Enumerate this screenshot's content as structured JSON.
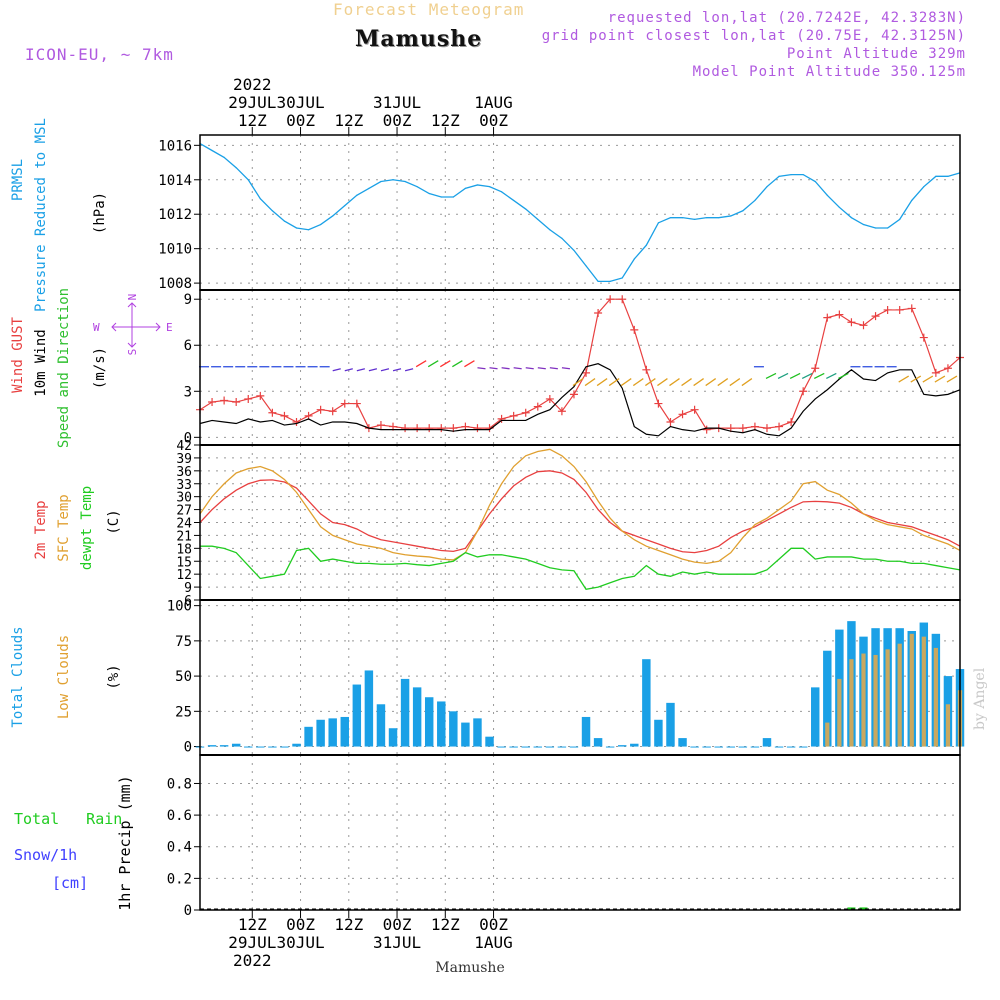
{
  "header": {
    "title": "Forecast Meteogram",
    "location": "Mamushe",
    "model": "ICON-EU, ~ 7km",
    "requested": "requested lon,lat (20.7242E, 42.3283N)",
    "grid_point": "grid point closest lon,lat (20.75E, 42.3125N)",
    "point_altitude": "Point Altitude 329m",
    "model_altitude": "Model Point Altitude 350.125m",
    "footer_location": "Mamushe",
    "watermark": "by Angel"
  },
  "colors": {
    "pressure": "#1aa0e6",
    "gust": "#e84040",
    "wind": "#000000",
    "wind_dir": "#30c030",
    "t2m": "#e84040",
    "sfc": "#e0a030",
    "dew": "#20cc20",
    "total_cloud": "#1aa0e6",
    "low_cloud": "#c8a860",
    "rain": "#20cc20",
    "snow": "#4040ff",
    "compass": "#b040e0"
  },
  "chart_data": [
    {
      "type": "line",
      "id": "pressure",
      "ylabel_parts": [
        "PRMSL",
        "Pressure Reduced to MSL",
        "(hPa)"
      ],
      "ylim": [
        1007.6,
        1016.6
      ],
      "yticks": [
        1008,
        1010,
        1012,
        1014,
        1016
      ],
      "x_hours": [
        0,
        3,
        6,
        9,
        12,
        15,
        18,
        21,
        24,
        27,
        30,
        33,
        36,
        39,
        42,
        45,
        48,
        51,
        54,
        57,
        60,
        63,
        66,
        69,
        72,
        75,
        78,
        81,
        84,
        87,
        90,
        93,
        96,
        99,
        102,
        105,
        108,
        111,
        114,
        117,
        120,
        123,
        126,
        129,
        132,
        135,
        138,
        141,
        144,
        147,
        150,
        153,
        156,
        159,
        162,
        165,
        168,
        171,
        174,
        177,
        180,
        183,
        186,
        189
      ],
      "series": [
        {
          "name": "PRMSL",
          "values": [
            1016.1,
            1015.7,
            1015.3,
            1014.7,
            1014.0,
            1012.9,
            1012.2,
            1011.6,
            1011.2,
            1011.1,
            1011.4,
            1011.9,
            1012.5,
            1013.1,
            1013.5,
            1013.9,
            1014.0,
            1013.9,
            1013.6,
            1013.2,
            1013.0,
            1013.0,
            1013.5,
            1013.7,
            1013.6,
            1013.3,
            1012.8,
            1012.3,
            1011.7,
            1011.1,
            1010.6,
            1009.9,
            1009.0,
            1008.1,
            1008.1,
            1008.3,
            1009.4,
            1010.2,
            1011.5,
            1011.8,
            1011.8,
            1011.7,
            1011.8,
            1011.8,
            1011.9,
            1012.2,
            1012.8,
            1013.6,
            1014.2,
            1014.3,
            1014.3,
            1013.9,
            1013.1,
            1012.4,
            1011.8,
            1011.4,
            1011.2,
            1011.2,
            1011.7,
            1012.8,
            1013.6,
            1014.2,
            1014.2,
            1014.4
          ]
        }
      ]
    },
    {
      "type": "line",
      "id": "wind",
      "ylabel_parts": [
        "Wind GUST",
        "10m Wind",
        "Speed and Direction",
        "(m/s)"
      ],
      "compass": {
        "n": "N",
        "s": "S",
        "w": "W",
        "e": "E"
      },
      "ylim": [
        -0.5,
        9.6
      ],
      "yticks": [
        0,
        3,
        6,
        9
      ],
      "x_hours": [
        0,
        3,
        6,
        9,
        12,
        15,
        18,
        21,
        24,
        27,
        30,
        33,
        36,
        39,
        42,
        45,
        48,
        51,
        54,
        57,
        60,
        63,
        66,
        69,
        72,
        75,
        78,
        81,
        84,
        87,
        90,
        93,
        96,
        99,
        102,
        105,
        108,
        111,
        114,
        117,
        120,
        123,
        126,
        129,
        132,
        135,
        138,
        141,
        144,
        147,
        150,
        153,
        156,
        159,
        162,
        165,
        168,
        171,
        174,
        177,
        180,
        183,
        186,
        189
      ],
      "series": [
        {
          "name": "Wind GUST",
          "values": [
            1.8,
            2.3,
            2.4,
            2.3,
            2.5,
            2.7,
            1.6,
            1.4,
            1.0,
            1.4,
            1.8,
            1.7,
            2.2,
            2.2,
            0.6,
            0.8,
            0.7,
            0.6,
            0.6,
            0.6,
            0.6,
            0.6,
            0.7,
            0.6,
            0.6,
            1.2,
            1.4,
            1.6,
            2.0,
            2.5,
            1.7,
            2.8,
            4.2,
            8.1,
            9.0,
            9.0,
            7.0,
            4.4,
            2.2,
            1.0,
            1.5,
            1.8,
            0.5,
            0.6,
            0.6,
            0.6,
            0.7,
            0.6,
            0.7,
            1.0,
            3.0,
            4.5,
            7.8,
            8.0,
            7.5,
            7.3,
            7.9,
            8.3,
            8.3,
            8.4,
            6.5,
            4.2,
            4.5,
            5.2
          ]
        },
        {
          "name": "10m Wind",
          "values": [
            0.9,
            1.1,
            1.0,
            0.9,
            1.2,
            1.0,
            1.1,
            0.8,
            0.9,
            1.2,
            0.8,
            1.0,
            1.0,
            0.9,
            0.6,
            0.5,
            0.5,
            0.5,
            0.5,
            0.5,
            0.5,
            0.4,
            0.5,
            0.5,
            0.5,
            1.1,
            1.1,
            1.1,
            1.5,
            1.8,
            2.6,
            3.3,
            4.6,
            4.8,
            4.4,
            3.2,
            0.7,
            0.2,
            0.1,
            0.7,
            0.5,
            0.4,
            0.6,
            0.6,
            0.4,
            0.3,
            0.5,
            0.2,
            0.1,
            0.6,
            1.7,
            2.5,
            3.1,
            3.8,
            4.4,
            3.8,
            3.7,
            4.2,
            4.4,
            4.4,
            2.8,
            2.7,
            2.8,
            3.1
          ]
        }
      ]
    },
    {
      "type": "line",
      "id": "temperature",
      "ylabel_parts": [
        "2m Temp",
        "SFC Temp",
        "dewpt Temp",
        "(C)"
      ],
      "ylim": [
        6,
        42
      ],
      "yticks": [
        6,
        9,
        12,
        15,
        18,
        21,
        24,
        27,
        30,
        33,
        36,
        39,
        42
      ],
      "x_hours": [
        0,
        3,
        6,
        9,
        12,
        15,
        18,
        21,
        24,
        27,
        30,
        33,
        36,
        39,
        42,
        45,
        48,
        51,
        54,
        57,
        60,
        63,
        66,
        69,
        72,
        75,
        78,
        81,
        84,
        87,
        90,
        93,
        96,
        99,
        102,
        105,
        108,
        111,
        114,
        117,
        120,
        123,
        126,
        129,
        132,
        135,
        138,
        141,
        144,
        147,
        150,
        153,
        156,
        159,
        162,
        165,
        168,
        171,
        174,
        177,
        180,
        183,
        186,
        189
      ],
      "series": [
        {
          "name": "2m Temp",
          "values": [
            24.0,
            27.0,
            29.5,
            31.5,
            33.0,
            33.8,
            33.9,
            33.4,
            32.0,
            29.0,
            26.0,
            24.0,
            23.5,
            22.5,
            21.0,
            20.0,
            19.5,
            19.0,
            18.5,
            18.0,
            17.5,
            17.3,
            18.0,
            22.0,
            26.0,
            29.5,
            32.5,
            34.5,
            35.8,
            36.0,
            35.5,
            34.0,
            31.0,
            27.0,
            24.0,
            22.0,
            21.0,
            20.0,
            19.0,
            18.0,
            17.2,
            17.0,
            17.5,
            18.5,
            20.5,
            22.0,
            23.0,
            24.5,
            26.0,
            27.5,
            28.8,
            28.9,
            28.8,
            28.5,
            27.5,
            26.0,
            25.0,
            24.0,
            23.5,
            23.0,
            22.0,
            21.0,
            20.0,
            18.5
          ]
        },
        {
          "name": "SFC Temp",
          "values": [
            26.0,
            30.0,
            33.0,
            35.5,
            36.5,
            37.0,
            36.0,
            34.0,
            31.0,
            27.0,
            23.0,
            21.0,
            20.0,
            19.0,
            18.5,
            18.0,
            17.0,
            16.5,
            16.2,
            16.0,
            15.5,
            15.3,
            17.0,
            22.0,
            28.0,
            33.0,
            37.0,
            39.5,
            40.5,
            41.0,
            39.5,
            37.0,
            33.5,
            29.0,
            25.0,
            22.0,
            20.0,
            18.5,
            17.5,
            16.5,
            15.5,
            14.8,
            14.5,
            15.0,
            17.0,
            20.5,
            23.5,
            25.0,
            27.0,
            29.0,
            33.0,
            33.5,
            31.5,
            30.5,
            28.5,
            26.0,
            24.5,
            23.5,
            23.0,
            22.5,
            21.0,
            20.0,
            19.0,
            17.5
          ]
        },
        {
          "name": "dewpt Temp",
          "values": [
            18.5,
            18.5,
            18.0,
            17.0,
            14.0,
            11.0,
            11.5,
            12.0,
            17.5,
            18.0,
            15.0,
            15.5,
            15.0,
            14.5,
            14.5,
            14.3,
            14.3,
            14.5,
            14.2,
            14.0,
            14.5,
            15.0,
            17.0,
            16.0,
            16.5,
            16.5,
            16.0,
            15.5,
            14.5,
            13.5,
            13.0,
            12.8,
            8.5,
            9.0,
            10.0,
            11.0,
            11.5,
            14.0,
            12.0,
            11.5,
            12.5,
            12.0,
            12.5,
            12.0,
            12.0,
            12.0,
            12.0,
            13.0,
            15.5,
            18.0,
            18.0,
            15.5,
            16.0,
            16.0,
            16.0,
            15.5,
            15.5,
            15.0,
            15.0,
            14.5,
            14.5,
            14.0,
            13.5,
            13.0
          ]
        }
      ]
    },
    {
      "type": "bar",
      "id": "clouds",
      "ylabel_parts": [
        "Total Clouds",
        "Low Clouds",
        "(%)"
      ],
      "ylim": [
        -6,
        104
      ],
      "yticks": [
        0,
        25,
        50,
        75,
        100
      ],
      "x_hours": [
        0,
        3,
        6,
        9,
        12,
        15,
        18,
        21,
        24,
        27,
        30,
        33,
        36,
        39,
        42,
        45,
        48,
        51,
        54,
        57,
        60,
        63,
        66,
        69,
        72,
        75,
        78,
        81,
        84,
        87,
        90,
        93,
        96,
        99,
        102,
        105,
        108,
        111,
        114,
        117,
        120,
        123,
        126,
        129,
        132,
        135,
        138,
        141,
        144,
        147,
        150,
        153,
        156,
        159,
        162,
        165,
        168,
        171,
        174,
        177,
        180,
        183,
        186,
        189
      ],
      "series": [
        {
          "name": "Total Clouds",
          "values": [
            0,
            1,
            1,
            2,
            0,
            0,
            0,
            0,
            2,
            14,
            19,
            20,
            21,
            44,
            54,
            30,
            13,
            48,
            42,
            35,
            32,
            25,
            17,
            20,
            7,
            0,
            0,
            0,
            0,
            0,
            0,
            0,
            21,
            6,
            0,
            1,
            2,
            62,
            19,
            31,
            6,
            0,
            0,
            0,
            0,
            0,
            0,
            6,
            0,
            0,
            0,
            42,
            68,
            83,
            89,
            78,
            84,
            84,
            84,
            82,
            88,
            80,
            50,
            55
          ]
        },
        {
          "name": "Low Clouds",
          "values": [
            0,
            0,
            0,
            0,
            0,
            0,
            0,
            0,
            0,
            0,
            0,
            0,
            0,
            0,
            0,
            0,
            0,
            0,
            0,
            0,
            0,
            0,
            0,
            0,
            0,
            0,
            0,
            0,
            0,
            0,
            0,
            0,
            0,
            0,
            0,
            0,
            0,
            0,
            0,
            0,
            0,
            0,
            0,
            0,
            0,
            0,
            0,
            0,
            0,
            0,
            0,
            0,
            17,
            48,
            62,
            66,
            65,
            69,
            73,
            80,
            78,
            70,
            30,
            40
          ]
        }
      ]
    },
    {
      "type": "bar",
      "id": "precip",
      "ylabel_parts": [
        "Total Rain",
        "Snow/1h",
        "[cm]",
        "1hr Precip (mm)"
      ],
      "ylim": [
        0,
        0.98
      ],
      "yticks": [
        0,
        0.2,
        0.4,
        0.6,
        0.8
      ],
      "tick_labels": [
        "0",
        "0.2",
        "0.4",
        "0.6",
        "0.8"
      ],
      "x_hours": [
        0,
        3,
        6,
        9,
        12,
        15,
        18,
        21,
        24,
        27,
        30,
        33,
        36,
        39,
        42,
        45,
        48,
        51,
        54,
        57,
        60,
        63,
        66,
        69,
        72,
        75,
        78,
        81,
        84,
        87,
        90,
        93,
        96,
        99,
        102,
        105,
        108,
        111,
        114,
        117,
        120,
        123,
        126,
        129,
        132,
        135,
        138,
        141,
        144,
        147,
        150,
        153,
        156,
        159,
        162,
        165,
        168,
        171,
        174,
        177,
        180,
        183,
        186,
        189
      ],
      "series": [
        {
          "name": "Total Rain",
          "values": [
            0,
            0,
            0,
            0,
            0,
            0,
            0,
            0,
            0,
            0,
            0,
            0,
            0,
            0,
            0,
            0,
            0,
            0,
            0,
            0,
            0,
            0,
            0,
            0,
            0,
            0,
            0,
            0,
            0,
            0,
            0,
            0,
            0,
            0,
            0,
            0,
            0,
            0,
            0,
            0,
            0,
            0,
            0,
            0,
            0,
            0,
            0,
            0,
            0,
            0,
            0,
            0,
            0,
            0,
            0.01,
            0.01,
            0,
            0,
            0,
            0,
            0,
            0,
            0,
            0
          ]
        },
        {
          "name": "Snow/1h",
          "values": [
            0,
            0,
            0,
            0,
            0,
            0,
            0,
            0,
            0,
            0,
            0,
            0,
            0,
            0,
            0,
            0,
            0,
            0,
            0,
            0,
            0,
            0,
            0,
            0,
            0,
            0,
            0,
            0,
            0,
            0,
            0,
            0,
            0,
            0,
            0,
            0,
            0,
            0,
            0,
            0,
            0,
            0,
            0,
            0,
            0,
            0,
            0,
            0,
            0,
            0,
            0,
            0,
            0,
            0,
            0,
            0,
            0,
            0,
            0,
            0,
            0,
            0,
            0,
            0
          ]
        }
      ]
    }
  ],
  "time_axis": {
    "start_hour_offset": -13,
    "end_hour_offset": 176,
    "major_ticks": [
      {
        "h": 0,
        "time": "12Z",
        "day": "29JUL",
        "year": "2022"
      },
      {
        "h": 12,
        "time": "00Z",
        "day": "30JUL",
        "year": ""
      },
      {
        "h": 24,
        "time": "12Z",
        "day": "",
        "year": ""
      },
      {
        "h": 36,
        "time": "00Z",
        "day": "31JUL",
        "year": ""
      },
      {
        "h": 48,
        "time": "12Z",
        "day": "",
        "year": ""
      },
      {
        "h": 60,
        "time": "00Z",
        "day": "1AUG",
        "year": ""
      }
    ]
  }
}
